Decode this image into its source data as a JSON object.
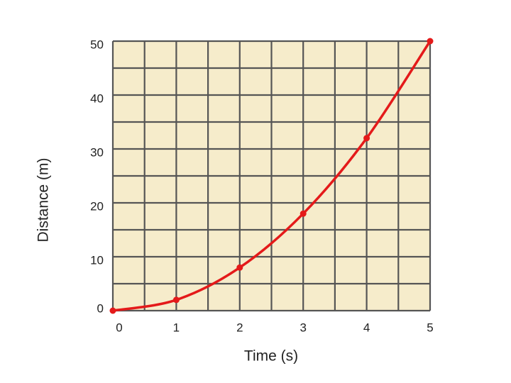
{
  "chart_data": {
    "type": "line",
    "xlabel": "Time  (s)",
    "ylabel": "Distance (m)",
    "x": [
      0,
      1,
      2,
      3,
      4,
      5
    ],
    "series": [
      {
        "name": "Distance",
        "color": "#e41a1a",
        "values": [
          0,
          2,
          8,
          18,
          32,
          50
        ]
      }
    ],
    "xlim": [
      0,
      5
    ],
    "ylim": [
      0,
      50
    ],
    "xticks": [
      0,
      1,
      2,
      3,
      4,
      5
    ],
    "yticks": [
      0,
      10,
      20,
      30,
      40,
      50
    ],
    "xminorticks": [
      0.5,
      1.5,
      2.5,
      3.5,
      4.5
    ],
    "yminorticks": [
      5,
      15,
      25,
      35,
      45
    ],
    "grid": true,
    "background": "#f6eccb"
  }
}
